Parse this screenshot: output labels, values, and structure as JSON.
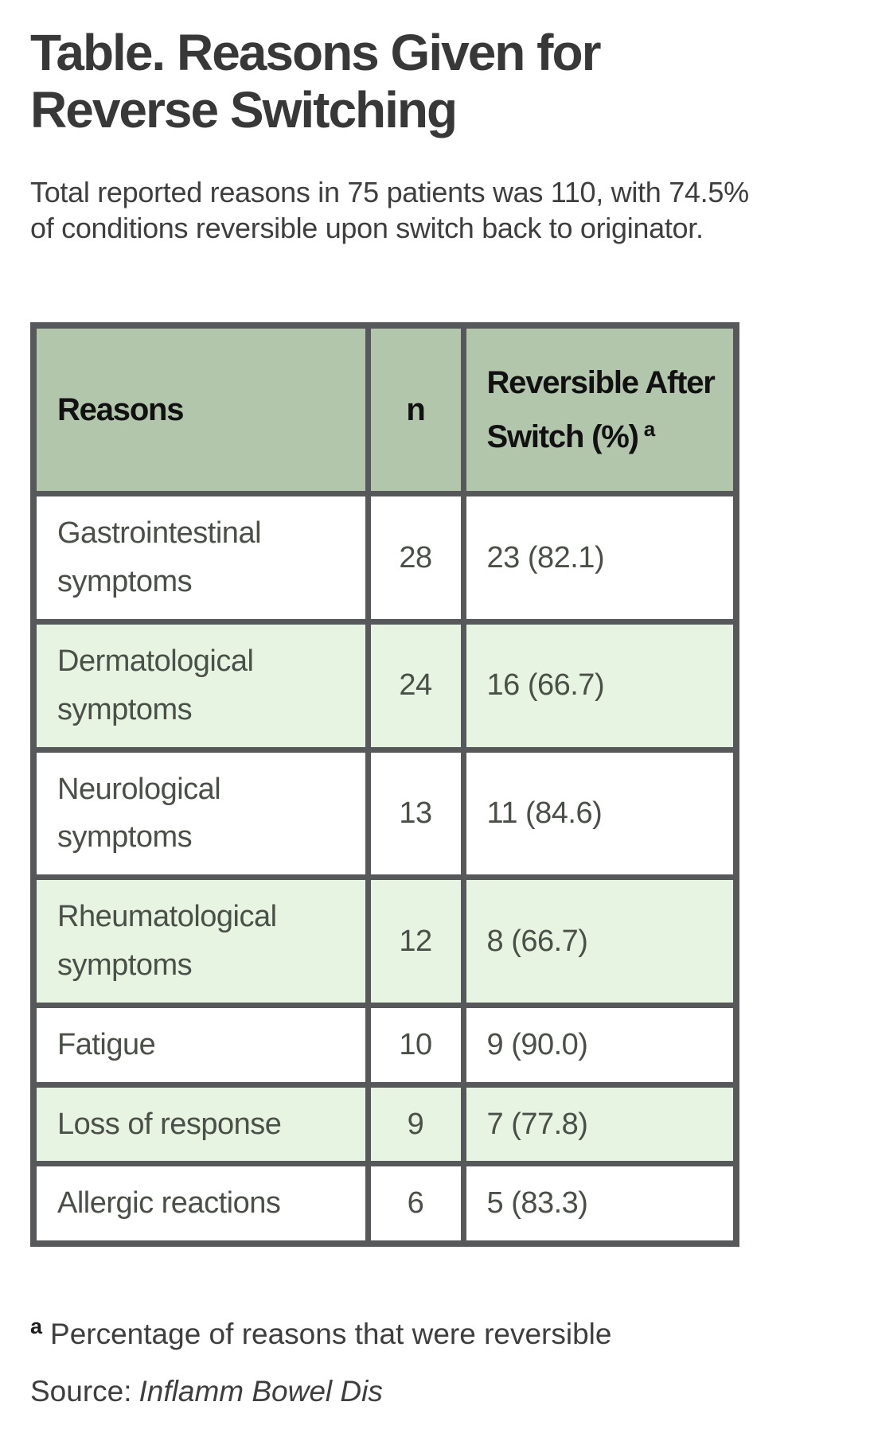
{
  "page": {
    "title": "Table. Reasons Given for\nReverse Switching",
    "subtitle": "Total reported reasons in 75 patients was 110, with 74.5%\nof conditions reversible upon switch back to originator.",
    "footnote": {
      "marker": "a",
      "text": "Percentage of reasons that were reversible"
    },
    "source": {
      "label": "Source:",
      "journal": "Inflamm Bowel Dis"
    }
  },
  "table": {
    "columns": [
      {
        "label": "Reasons"
      },
      {
        "label": "n"
      },
      {
        "label": "Reversible After\nSwitch (%)",
        "sup": "a"
      }
    ],
    "rows": [
      {
        "reason": "Gastrointestinal symptoms",
        "n": "28",
        "reversible": "23 (82.1)"
      },
      {
        "reason": "Dermatological symptoms",
        "n": "24",
        "reversible": "16 (66.7)"
      },
      {
        "reason": "Neurological symptoms",
        "n": "13",
        "reversible": "11 (84.6)"
      },
      {
        "reason": "Rheumatological symptoms",
        "n": "12",
        "reversible": "8 (66.7)"
      },
      {
        "reason": "Fatigue",
        "n": "10",
        "reversible": "9 (90.0)"
      },
      {
        "reason": "Loss of response",
        "n": "9",
        "reversible": "7 (77.8)"
      },
      {
        "reason": "Allergic reactions",
        "n": "6",
        "reversible": "5 (83.3)"
      }
    ]
  },
  "colors": {
    "header_bg": "#b2c6ab",
    "row_alt_bg": "#e7f4e1",
    "border": "#57585a",
    "title_text": "#383838",
    "body_text": "#3e3e3e",
    "cell_text": "#4a5048",
    "header_text": "#111111"
  },
  "chart_data": {
    "type": "table",
    "title": "Table. Reasons Given for Reverse Switching",
    "caption": "Total reported reasons in 75 patients was 110, with 74.5% of conditions reversible upon switch back to originator.",
    "columns": [
      "Reasons",
      "n",
      "Reversible After Switch (%)a"
    ],
    "rows": [
      [
        "Gastrointestinal symptoms",
        28,
        "23 (82.1)"
      ],
      [
        "Dermatological symptoms",
        24,
        "16 (66.7)"
      ],
      [
        "Neurological symptoms",
        13,
        "11 (84.6)"
      ],
      [
        "Rheumatological symptoms",
        12,
        "8 (66.7)"
      ],
      [
        "Fatigue",
        10,
        "9 (90.0)"
      ],
      [
        "Loss of response",
        9,
        "7 (77.8)"
      ],
      [
        "Allergic reactions",
        6,
        "5 (83.3)"
      ]
    ],
    "footnote": "a Percentage of reasons that were reversible",
    "source": "Inflamm Bowel Dis",
    "layout_hints": {
      "zebra_striping": "even rows light green",
      "header_background": "sage green",
      "grid": "heavy dark gray borders"
    }
  }
}
